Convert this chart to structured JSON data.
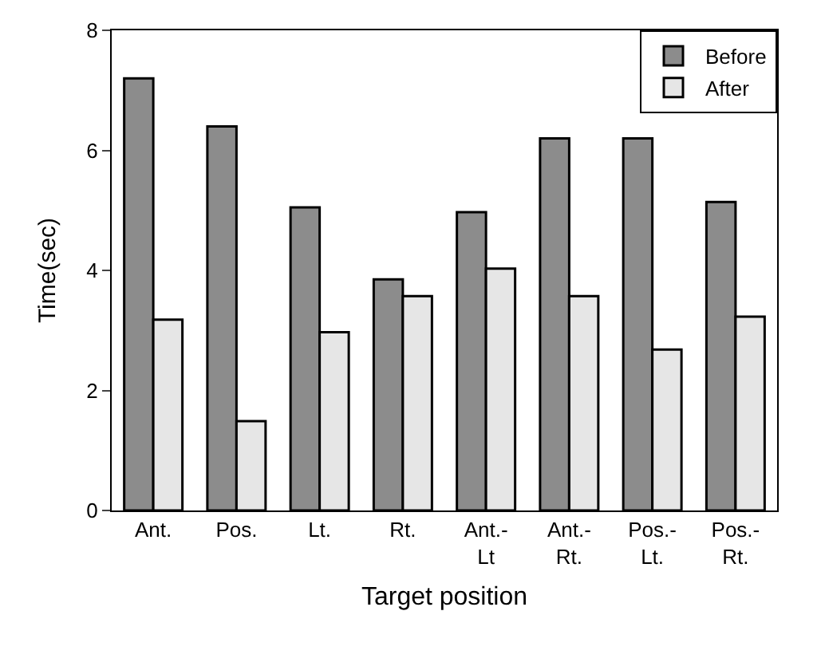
{
  "chart_data": {
    "type": "bar",
    "xlabel": "Target position",
    "ylabel": "Time(sec)",
    "categories": [
      "Ant.",
      "Pos.",
      "Lt.",
      "Rt.",
      "Ant.-Lt",
      "Ant.-Rt.",
      "Pos.-Lt.",
      "Pos.-Rt."
    ],
    "series": [
      {
        "name": "Before",
        "color": "#8c8c8c",
        "values": [
          7.2,
          6.4,
          5.05,
          3.85,
          4.97,
          6.2,
          6.2,
          5.14
        ]
      },
      {
        "name": "After",
        "color": "#e6e6e6",
        "values": [
          3.18,
          1.49,
          2.97,
          3.57,
          4.03,
          3.57,
          2.68,
          3.23
        ]
      }
    ],
    "ylim": [
      0,
      8
    ],
    "yticks": [
      0,
      2,
      4,
      6,
      8
    ],
    "grid": false,
    "legend": "top right"
  }
}
